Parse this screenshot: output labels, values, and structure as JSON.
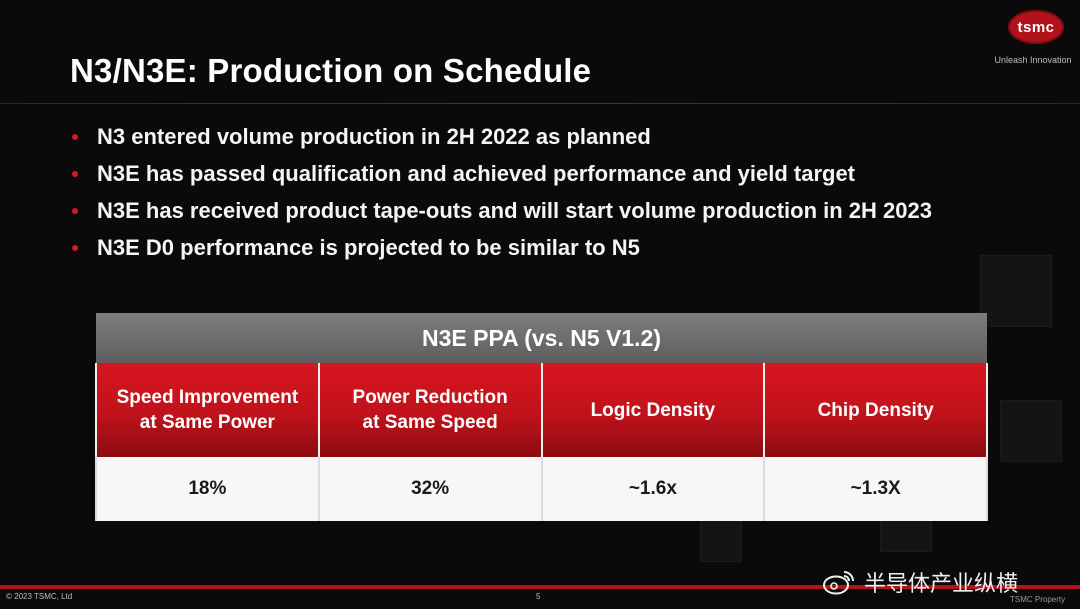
{
  "logo": {
    "text": "tsmc",
    "tagline": "Unleash Innovation"
  },
  "slide": {
    "title": "N3/N3E: Production on Schedule",
    "bullets": [
      "N3 entered volume production in 2H 2022 as planned",
      "N3E has passed qualification and achieved performance and yield target",
      "N3E has received product tape-outs and will start volume production in 2H 2023",
      "N3E D0 performance is projected to be similar to N5"
    ]
  },
  "ppa_table": {
    "title": "N3E PPA (vs. N5 V1.2)",
    "columns": [
      [
        "Speed Improvement",
        "at Same Power"
      ],
      [
        "Power Reduction",
        "at Same Speed"
      ],
      [
        "Logic Density"
      ],
      [
        "Chip Density"
      ]
    ],
    "values": [
      "18%",
      "32%",
      "~1.6x",
      "~1.3X"
    ]
  },
  "footer": {
    "copyright": "© 2023 TSMC, Ltd",
    "page": "5",
    "right": "TSMC Property"
  },
  "watermark": {
    "text": "半导体产业纵横",
    "icon": "weibo-icon"
  },
  "colors": {
    "accent": "#d21a22",
    "header_gray": "#6e6e6e",
    "background": "#0a0a0a"
  }
}
